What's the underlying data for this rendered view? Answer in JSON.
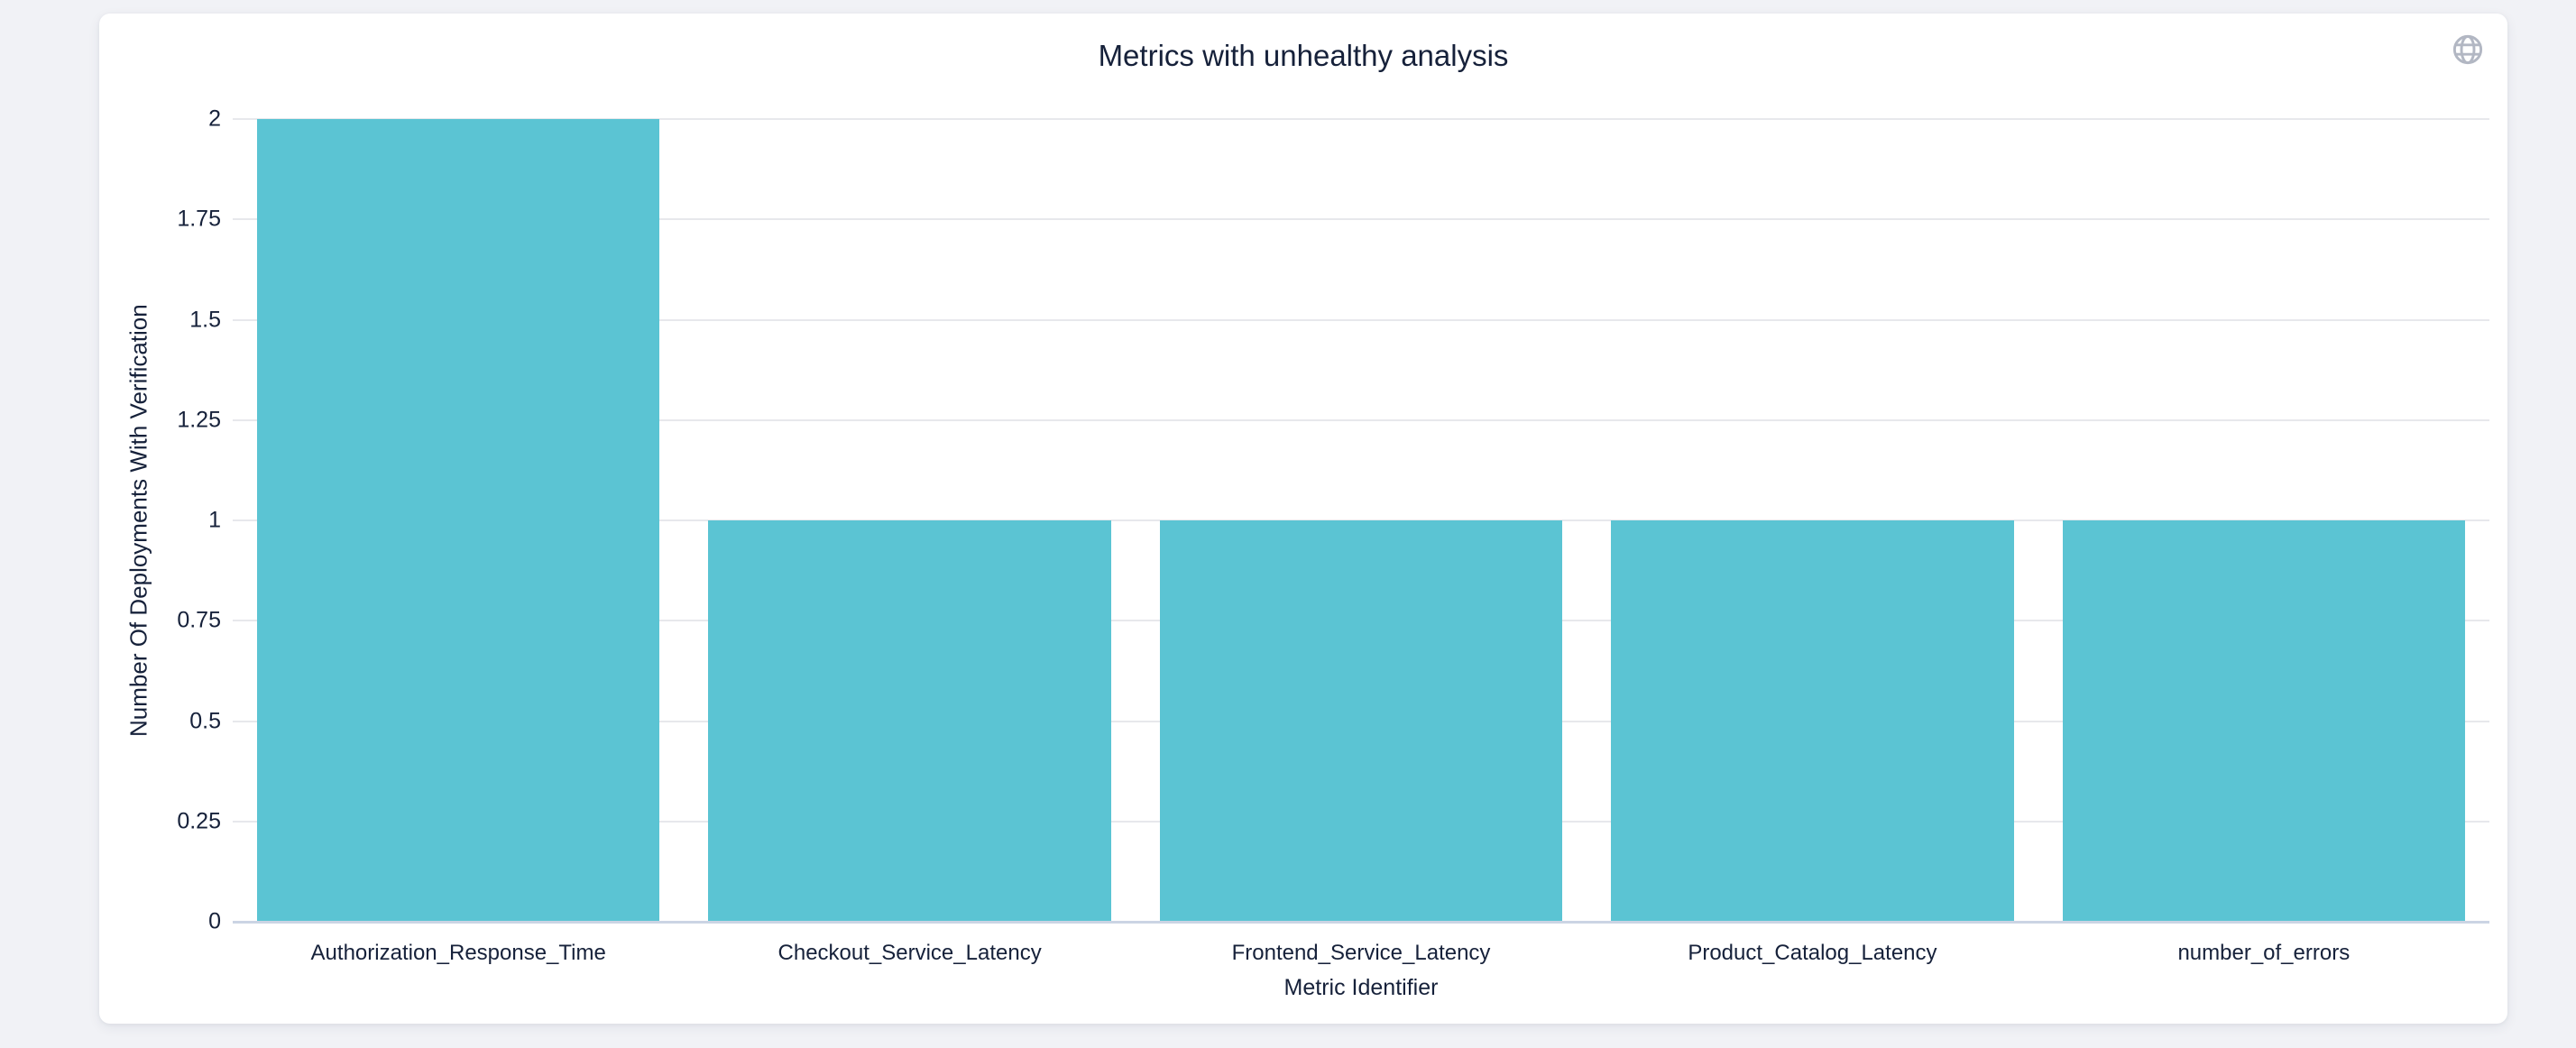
{
  "page": {
    "background_color": "#f1f2f6"
  },
  "card": {
    "background_color": "#ffffff"
  },
  "toolbar": {
    "globe_icon": "globe",
    "globe_icon_color": "#b2b7c3"
  },
  "chart_data": {
    "type": "bar",
    "title": "Metrics with unhealthy analysis",
    "xlabel": "Metric Identifier",
    "ylabel": "Number Of Deployments With Verification",
    "categories": [
      "Authorization_Response_Time",
      "Checkout_Service_Latency",
      "Frontend_Service_Latency",
      "Product_Catalog_Latency",
      "number_of_errors"
    ],
    "values": [
      2,
      1,
      1,
      1,
      1
    ],
    "ylim": [
      0,
      2
    ],
    "yticks": [
      "0",
      "0.25",
      "0.5",
      "0.75",
      "1",
      "1.25",
      "1.5",
      "1.75",
      "2"
    ],
    "grid": true,
    "legend": "none",
    "bar_color": "#5bc4d3",
    "grid_color": "#e7e8ec",
    "axis_line_color": "#cbd4e4",
    "text_color": "#16213a"
  }
}
